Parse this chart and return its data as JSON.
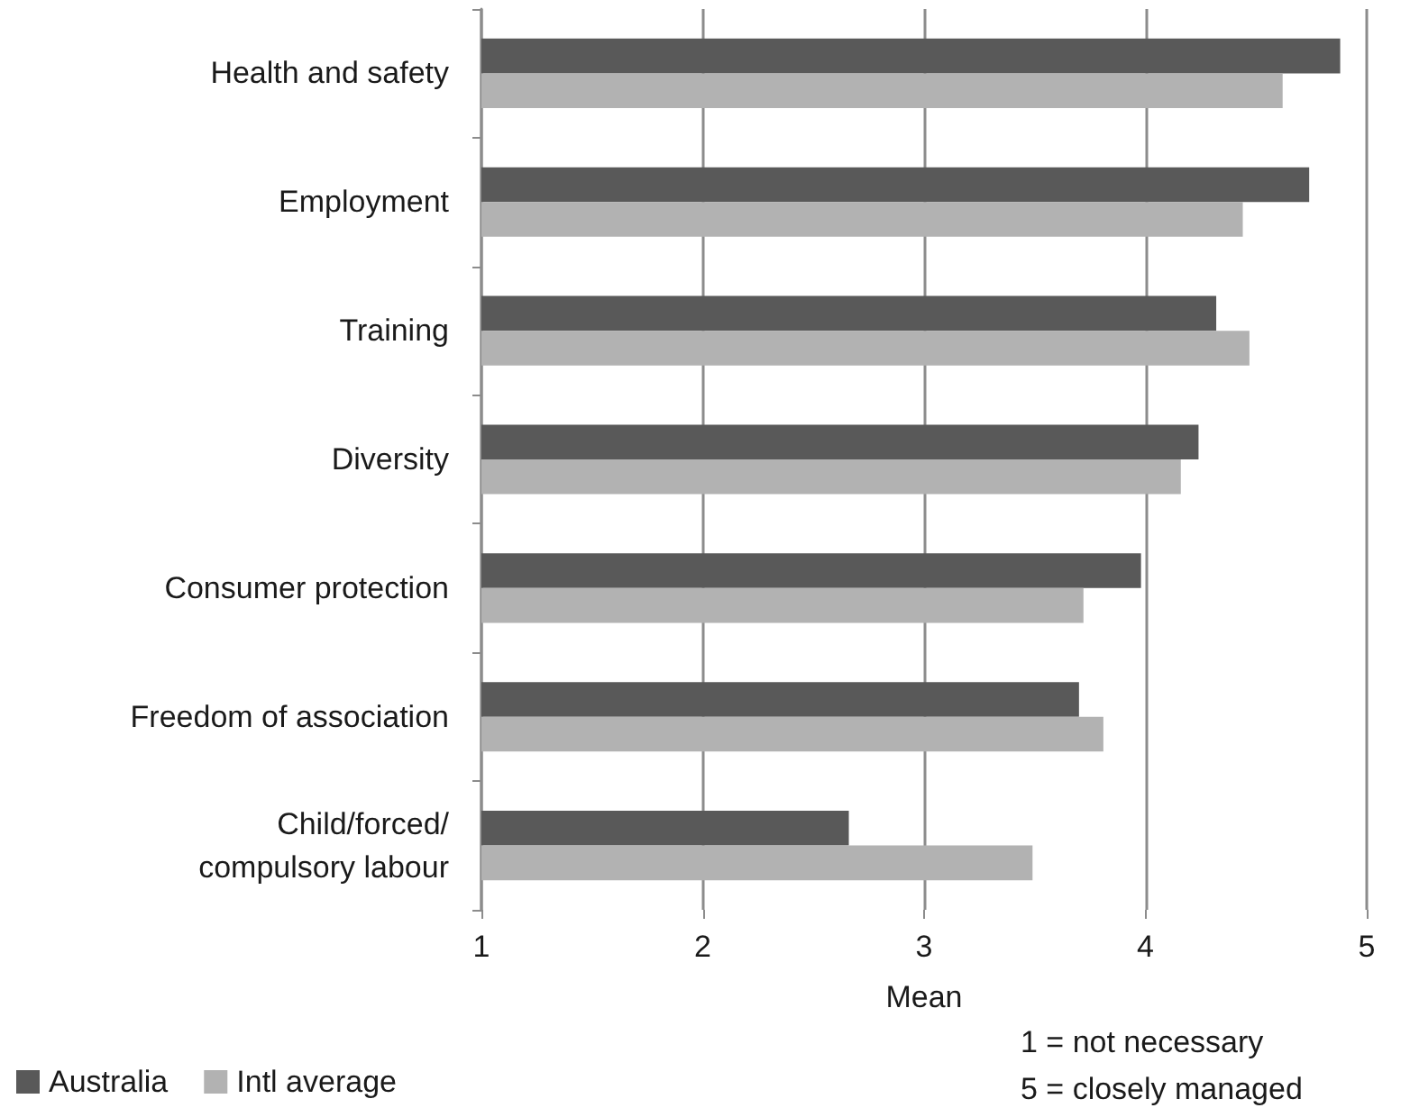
{
  "chart_data": {
    "type": "bar",
    "orientation": "horizontal",
    "categories": [
      "Health and safety",
      "Employment",
      "Training",
      "Diversity",
      "Consumer protection",
      "Freedom of association",
      "Child/forced/\ncompulsory labour"
    ],
    "series": [
      {
        "name": "Australia",
        "color": "#595959",
        "values": [
          4.88,
          4.74,
          4.32,
          4.24,
          3.98,
          3.7,
          2.66
        ]
      },
      {
        "name": "Intl average",
        "color": "#b2b2b2",
        "values": [
          4.62,
          4.44,
          4.47,
          4.16,
          3.72,
          3.81,
          3.49
        ]
      }
    ],
    "xlim": [
      1,
      5
    ],
    "xticks": [
      1,
      2,
      3,
      4,
      5
    ],
    "xlabel": "Mean",
    "grid": "x",
    "legend": "bottom left",
    "annotations": [
      "1 = not necessary",
      "5 = closely managed"
    ]
  }
}
